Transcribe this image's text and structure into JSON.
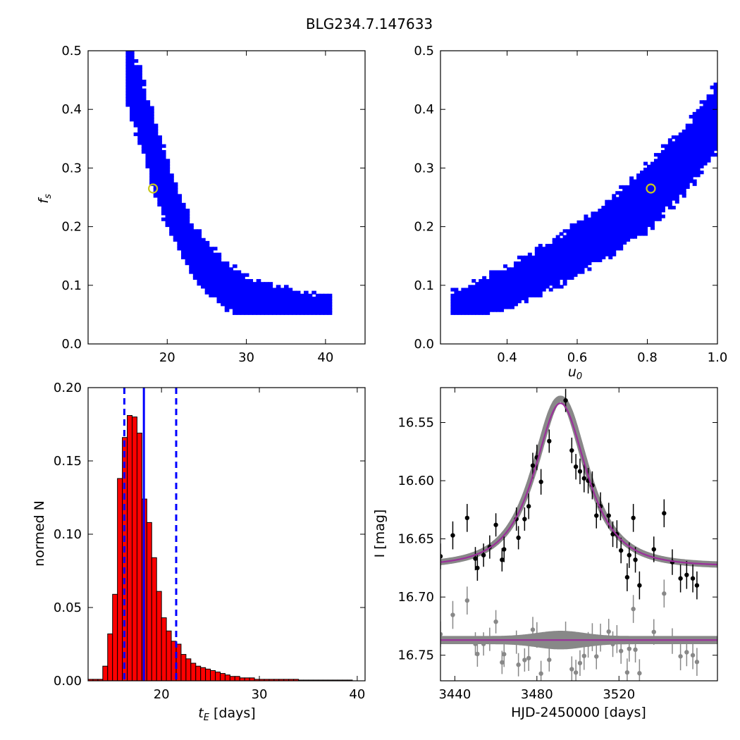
{
  "title": "BLG234.7.147633",
  "chart_data": [
    {
      "type": "heatmap",
      "panel": "top-left",
      "xlabel": "",
      "ylabel": "f_s",
      "xlim": [
        10,
        45
      ],
      "ylim": [
        0.0,
        0.5
      ],
      "xticks": [
        20,
        30,
        40
      ],
      "yticks": [
        0.0,
        0.1,
        0.2,
        0.3,
        0.4,
        0.5
      ],
      "best_fit": {
        "x": 18.2,
        "y": 0.265
      },
      "ridge": [
        [
          14.8,
          0.47
        ],
        [
          15.8,
          0.42
        ],
        [
          16.8,
          0.38
        ],
        [
          17.8,
          0.33
        ],
        [
          18.8,
          0.29
        ],
        [
          19.8,
          0.25
        ],
        [
          21.0,
          0.21
        ],
        [
          22.5,
          0.17
        ],
        [
          24.5,
          0.13
        ],
        [
          27.0,
          0.1
        ],
        [
          30.0,
          0.075
        ],
        [
          34.0,
          0.06
        ],
        [
          38.0,
          0.05
        ],
        [
          40.5,
          0.05
        ]
      ],
      "levels": [
        "black",
        "red",
        "green",
        "blue"
      ]
    },
    {
      "type": "heatmap",
      "panel": "top-right",
      "xlabel": "u_0",
      "ylabel": "",
      "xlim": [
        0.21,
        1.0
      ],
      "ylim": [
        0.0,
        0.5
      ],
      "xticks": [
        0.4,
        0.6,
        0.8,
        1.0
      ],
      "yticks": [
        0.0,
        0.1,
        0.2,
        0.3,
        0.4,
        0.5
      ],
      "best_fit": {
        "x": 0.81,
        "y": 0.265
      },
      "ridge": [
        [
          0.24,
          0.055
        ],
        [
          0.3,
          0.07
        ],
        [
          0.4,
          0.095
        ],
        [
          0.5,
          0.125
        ],
        [
          0.6,
          0.16
        ],
        [
          0.7,
          0.2
        ],
        [
          0.8,
          0.25
        ],
        [
          0.9,
          0.31
        ],
        [
          0.96,
          0.355
        ],
        [
          1.0,
          0.39
        ]
      ],
      "levels": [
        "black",
        "red",
        "green",
        "blue"
      ]
    },
    {
      "type": "bar",
      "panel": "bottom-left",
      "xlabel": "t_E  [days]",
      "ylabel": "normed N",
      "xlim": [
        12.5,
        40.8
      ],
      "ylim": [
        0.0,
        0.2
      ],
      "xticks": [
        20,
        30,
        40
      ],
      "yticks": [
        0.0,
        0.05,
        0.1,
        0.15,
        0.2
      ],
      "bin_width": 0.5,
      "bin_start": 12.5,
      "values": [
        0.001,
        0.001,
        0.001,
        0.01,
        0.032,
        0.059,
        0.138,
        0.166,
        0.181,
        0.18,
        0.169,
        0.124,
        0.108,
        0.084,
        0.061,
        0.043,
        0.034,
        0.027,
        0.025,
        0.018,
        0.015,
        0.012,
        0.01,
        0.009,
        0.008,
        0.007,
        0.006,
        0.005,
        0.004,
        0.003,
        0.003,
        0.002,
        0.002,
        0.002,
        0.001,
        0.001,
        0.001,
        0.001,
        0.001,
        0.001,
        0.001,
        0.001,
        0.001,
        0.0005,
        0.0005,
        0.0005,
        0.0005,
        0.0005,
        0.0005,
        0.0005,
        0.0005,
        0.0005,
        0.0005,
        0.0005
      ],
      "vlines": [
        {
          "x": 18.2,
          "style": "solid"
        },
        {
          "x": 16.2,
          "style": "dashed"
        },
        {
          "x": 21.5,
          "style": "dashed"
        }
      ]
    },
    {
      "type": "scatter",
      "panel": "bottom-right",
      "xlabel": "HJD-2450000 [days]",
      "ylabel": "I [mag]",
      "xlim": [
        3433,
        3568
      ],
      "ylim": [
        16.772,
        16.52
      ],
      "xticks": [
        3440,
        3480,
        3520
      ],
      "yticks": [
        16.55,
        16.6,
        16.65,
        16.7,
        16.75
      ],
      "model": {
        "t0": 3491.5,
        "tE": 18.2,
        "u0": 0.81,
        "fs": 0.265,
        "baseline": 16.6735,
        "residual_offset": 16.737
      },
      "points": [
        [
          3433,
          16.665,
          0.011
        ],
        [
          3439,
          16.647,
          0.012
        ],
        [
          3446,
          16.632,
          0.012
        ],
        [
          3450,
          16.667,
          0.01
        ],
        [
          3451,
          16.675,
          0.011
        ],
        [
          3454,
          16.664,
          0.01
        ],
        [
          3457,
          16.657,
          0.01
        ],
        [
          3460,
          16.638,
          0.01
        ],
        [
          3463,
          16.668,
          0.01
        ],
        [
          3464,
          16.659,
          0.011
        ],
        [
          3470,
          16.633,
          0.01
        ],
        [
          3471,
          16.649,
          0.01
        ],
        [
          3474,
          16.633,
          0.01
        ],
        [
          3476,
          16.622,
          0.011
        ],
        [
          3478,
          16.587,
          0.011
        ],
        [
          3480,
          16.58,
          0.011
        ],
        [
          3482,
          16.601,
          0.011
        ],
        [
          3486,
          16.566,
          0.01
        ],
        [
          3494,
          16.531,
          0.01
        ],
        [
          3497,
          16.574,
          0.011
        ],
        [
          3499,
          16.588,
          0.011
        ],
        [
          3501,
          16.592,
          0.011
        ],
        [
          3503,
          16.598,
          0.012
        ],
        [
          3505,
          16.6,
          0.011
        ],
        [
          3507,
          16.604,
          0.012
        ],
        [
          3509,
          16.63,
          0.011
        ],
        [
          3511,
          16.622,
          0.012
        ],
        [
          3515,
          16.63,
          0.011
        ],
        [
          3517,
          16.646,
          0.011
        ],
        [
          3519,
          16.646,
          0.012
        ],
        [
          3521,
          16.66,
          0.011
        ],
        [
          3524,
          16.683,
          0.012
        ],
        [
          3525,
          16.664,
          0.011
        ],
        [
          3527,
          16.632,
          0.012
        ],
        [
          3528,
          16.668,
          0.011
        ],
        [
          3530,
          16.69,
          0.012
        ],
        [
          3537,
          16.659,
          0.011
        ],
        [
          3542,
          16.628,
          0.012
        ],
        [
          3546,
          16.67,
          0.011
        ],
        [
          3550,
          16.684,
          0.012
        ],
        [
          3553,
          16.681,
          0.012
        ],
        [
          3556,
          16.684,
          0.012
        ],
        [
          3558,
          16.69,
          0.012
        ]
      ]
    }
  ]
}
